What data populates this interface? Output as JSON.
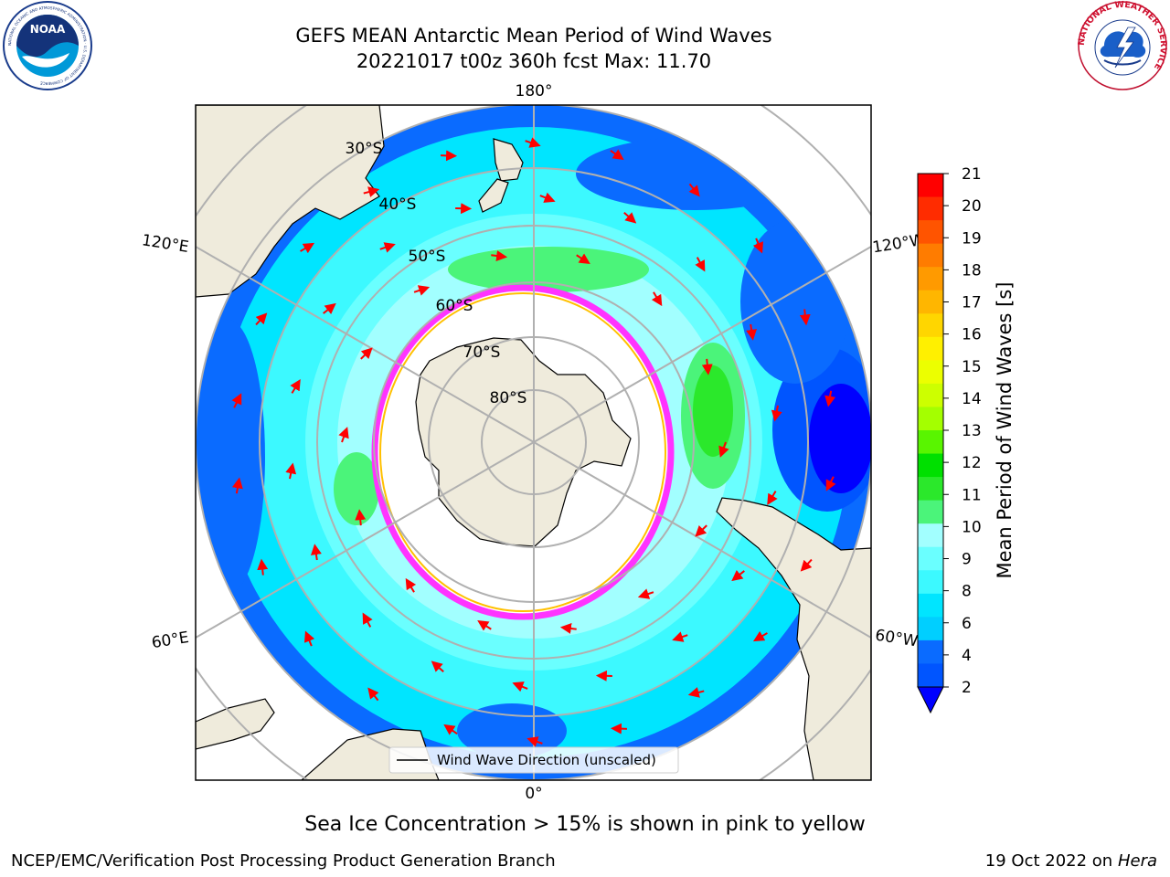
{
  "title": {
    "line1": "GEFS MEAN Antarctic Mean Period of Wind Waves",
    "line2": "20221017 t00z 360h fcst   Max: 11.70"
  },
  "logos": {
    "left": "NOAA",
    "left_ring_text": "NATIONAL OCEANIC AND ATMOSPHERIC ADMINISTRATION · U.S. DEPARTMENT OF COMMERCE",
    "right_ring_text": "NATIONAL WEATHER SERVICE"
  },
  "map": {
    "projection": "south-polar-stereographic",
    "longitude_labels": {
      "top": "180°",
      "left_upper": "120°E",
      "right_upper": "120°W",
      "left_lower": "60°E",
      "right_lower": "60°W",
      "bottom": "0°"
    },
    "latitude_labels": [
      "30°S",
      "40°S",
      "50°S",
      "60°S",
      "70°S",
      "80°S"
    ],
    "legend_label": "Wind Wave Direction (unscaled)",
    "colors": {
      "land": "#efebdc",
      "deep_blue": "#0000ff",
      "blue": "#0a6bff",
      "cyan": "#00e5ff",
      "light_cyan": "#54ffff",
      "pale_cyan": "#a8ffff",
      "green": "#45f26e",
      "mid_green": "#00d000",
      "sea_ice_pink": "#ff33ff",
      "sea_ice_yellow": "#ffc000",
      "arrow": "#ff0000"
    }
  },
  "colorbar": {
    "label": "Mean Period of Wind Waves [s]",
    "ticks": [
      "2",
      "4",
      "6",
      "8",
      "9",
      "10",
      "11",
      "12",
      "13",
      "14",
      "15",
      "16",
      "17",
      "18",
      "19",
      "20",
      "21"
    ],
    "colors_top_to_bottom": [
      "#ff0000",
      "#ff2c00",
      "#ff5400",
      "#ff7c00",
      "#ff9a00",
      "#ffb600",
      "#ffd600",
      "#fff000",
      "#ecff00",
      "#cdff00",
      "#a4ff00",
      "#59f500",
      "#00e000",
      "#2be82b",
      "#4bf47a",
      "#a2ffff",
      "#6affff",
      "#3cf9ff",
      "#00e5ff",
      "#00cfff",
      "#0a6bff",
      "#0055ff"
    ],
    "extend_color": "#0000ff"
  },
  "footer": {
    "note": "Sea Ice Concentration > 15% is shown in pink to yellow",
    "credit": "NCEP/EMC/Verification Post Processing Product Generation Branch",
    "date": "19 Oct 2022 on ",
    "host": "Hera"
  }
}
